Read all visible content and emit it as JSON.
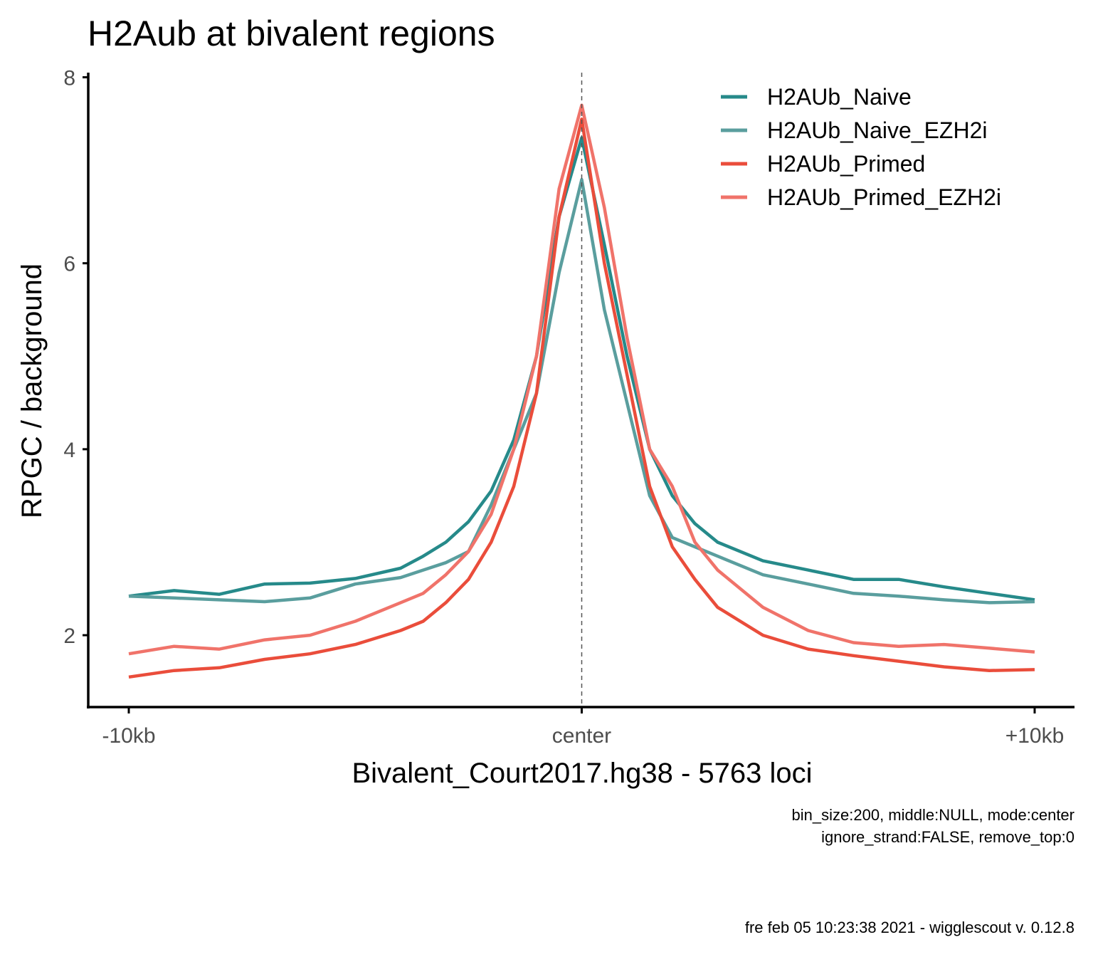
{
  "chart_data": {
    "type": "line",
    "title": "H2Aub at bivalent regions",
    "xlabel": "Bivalent_Court2017.hg38 - 5763 loci",
    "ylabel": "RPGC / background",
    "x_ticks": [
      {
        "value": -10000,
        "label": "-10kb"
      },
      {
        "value": 0,
        "label": "center"
      },
      {
        "value": 10000,
        "label": "+10kb"
      }
    ],
    "y_ticks": [
      2,
      4,
      6,
      8
    ],
    "xlim": [
      -10000,
      10000
    ],
    "ylim": [
      1.25,
      8.05
    ],
    "grid": false,
    "center_line": 0,
    "legend_position": "top-right",
    "series": [
      {
        "name": "H2AUb_Naive",
        "color": "#268a8a",
        "x": [
          -10000,
          -9000,
          -8000,
          -7000,
          -6000,
          -5000,
          -4000,
          -3500,
          -3000,
          -2500,
          -2000,
          -1500,
          -1000,
          -500,
          0,
          500,
          1000,
          1500,
          2000,
          2500,
          3000,
          4000,
          5000,
          6000,
          7000,
          8000,
          9000,
          10000
        ],
        "y": [
          2.42,
          2.48,
          2.44,
          2.55,
          2.56,
          2.61,
          2.72,
          2.85,
          3.0,
          3.22,
          3.55,
          4.1,
          5.0,
          6.5,
          7.35,
          6.2,
          5.0,
          4.0,
          3.5,
          3.2,
          3.0,
          2.8,
          2.7,
          2.6,
          2.6,
          2.52,
          2.45,
          2.38
        ]
      },
      {
        "name": "H2AUb_Naive_EZH2i",
        "color": "#5a9e9e",
        "x": [
          -10000,
          -9000,
          -8000,
          -7000,
          -6000,
          -5000,
          -4000,
          -3500,
          -3000,
          -2500,
          -2000,
          -1500,
          -1000,
          -500,
          0,
          500,
          1000,
          1500,
          2000,
          2500,
          3000,
          4000,
          5000,
          6000,
          7000,
          8000,
          9000,
          10000
        ],
        "y": [
          2.42,
          2.4,
          2.38,
          2.36,
          2.4,
          2.55,
          2.62,
          2.7,
          2.78,
          2.9,
          3.4,
          4.0,
          4.6,
          5.9,
          6.9,
          5.5,
          4.5,
          3.5,
          3.05,
          2.95,
          2.85,
          2.65,
          2.55,
          2.45,
          2.42,
          2.38,
          2.35,
          2.36
        ]
      },
      {
        "name": "H2AUb_Primed",
        "color": "#ea4d3b",
        "x": [
          -10000,
          -9000,
          -8000,
          -7000,
          -6000,
          -5000,
          -4000,
          -3500,
          -3000,
          -2500,
          -2000,
          -1500,
          -1000,
          -500,
          0,
          500,
          1000,
          1500,
          2000,
          2500,
          3000,
          4000,
          5000,
          6000,
          7000,
          8000,
          9000,
          10000
        ],
        "y": [
          1.55,
          1.62,
          1.65,
          1.74,
          1.8,
          1.9,
          2.05,
          2.15,
          2.35,
          2.6,
          3.0,
          3.6,
          4.6,
          6.5,
          7.55,
          6.0,
          4.8,
          3.6,
          2.95,
          2.6,
          2.3,
          2.0,
          1.85,
          1.78,
          1.72,
          1.66,
          1.62,
          1.63
        ]
      },
      {
        "name": "H2AUb_Primed_EZH2i",
        "color": "#f0736a",
        "x": [
          -10000,
          -9000,
          -8000,
          -7000,
          -6000,
          -5000,
          -4000,
          -3500,
          -3000,
          -2500,
          -2000,
          -1500,
          -1000,
          -500,
          0,
          500,
          1000,
          1500,
          2000,
          2500,
          3000,
          4000,
          5000,
          6000,
          7000,
          8000,
          9000,
          10000
        ],
        "y": [
          1.8,
          1.88,
          1.85,
          1.95,
          2.0,
          2.15,
          2.35,
          2.45,
          2.65,
          2.9,
          3.3,
          4.0,
          5.0,
          6.8,
          7.7,
          6.6,
          5.2,
          4.0,
          3.6,
          3.0,
          2.7,
          2.3,
          2.05,
          1.92,
          1.88,
          1.9,
          1.86,
          1.82
        ]
      }
    ],
    "caption_lines": [
      "bin_size:200, middle:NULL, mode:center",
      "ignore_strand:FALSE, remove_top:0"
    ],
    "footer": "fre feb 05 10:23:38 2021 - wigglescout v. 0.12.8"
  }
}
